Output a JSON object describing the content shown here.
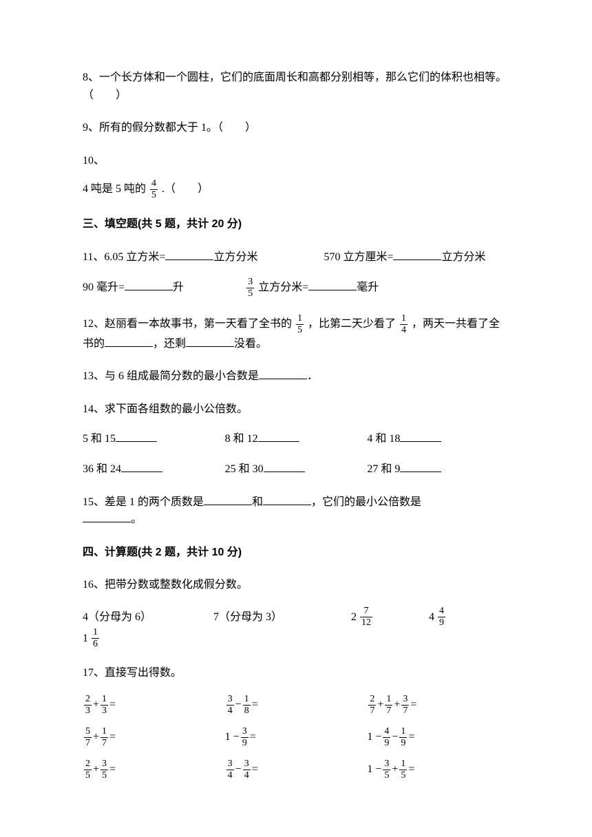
{
  "q8": "8、一个长方体和一个圆柱，它们的底面周长和高都分别相等，那么它们的体积也相等。（　　）",
  "q9": "9、所有的假分数都大于 1。（　　）",
  "q10_label": "10、",
  "q10_prefix": "4 吨是 5 吨的",
  "q10_suffix": ".（　　）",
  "q10_frac": {
    "num": "4",
    "den": "5"
  },
  "section3": "三、填空题(共 5 题，共计 20 分)",
  "q11_a": "11、6.05 立方米=",
  "q11_a_unit": "立方分米",
  "q11_b": "570 立方厘米=",
  "q11_b_unit": "立方分米",
  "q11_c": "90 毫升=",
  "q11_c_unit": "升",
  "q11_d_unit_pre": "立方分米=",
  "q11_d_unit_post": "毫升",
  "q11_d_frac": {
    "num": "3",
    "den": "5"
  },
  "q12_a": "12、赵丽看一本故事书，第一天看了全书的",
  "q12_b": "，比第二天少看了",
  "q12_c": "，两天一共看了全书的",
  "q12_d": "，还剩",
  "q12_e": "没看。",
  "q12_frac1": {
    "num": "1",
    "den": "5"
  },
  "q12_frac2": {
    "num": "1",
    "den": "4"
  },
  "q13_a": "13、与 6 组成最简分数的最小合数是",
  "q13_b": "．",
  "q14": "14、求下面各组数的最小公倍数。",
  "q14_items1": [
    "5 和 15",
    "8 和 12",
    "4 和 18"
  ],
  "q14_items2": [
    "36 和 24",
    "25 和 30",
    "27 和 9"
  ],
  "q15_a": "15、差是 1 的两个质数是",
  "q15_b": "和",
  "q15_c": "，它们的最小公倍数是",
  "q15_d": "。",
  "section4": "四、计算题(共 2 题，共计 10 分)",
  "q16": "16、把带分数或整数化成假分数。",
  "q16_items": {
    "a": "4（分母为 6）",
    "b": "7（分母为 3）",
    "c_whole": "2",
    "c_frac": {
      "num": "7",
      "den": "12"
    },
    "d_whole": "4",
    "d_frac": {
      "num": "4",
      "den": "9"
    },
    "e_whole": "1",
    "e_frac": {
      "num": "1",
      "den": "6"
    }
  },
  "q17": "17、直接写出得数。",
  "q17_rows": [
    [
      {
        "type": "add",
        "a": {
          "n": "2",
          "d": "3"
        },
        "b": {
          "n": "1",
          "d": "3"
        }
      },
      {
        "type": "sub",
        "a": {
          "n": "3",
          "d": "4"
        },
        "b": {
          "n": "1",
          "d": "8"
        }
      },
      {
        "type": "add3",
        "a": {
          "n": "2",
          "d": "7"
        },
        "b": {
          "n": "1",
          "d": "7"
        },
        "c": {
          "n": "3",
          "d": "7"
        }
      }
    ],
    [
      {
        "type": "add",
        "a": {
          "n": "5",
          "d": "7"
        },
        "b": {
          "n": "1",
          "d": "7"
        }
      },
      {
        "type": "onesub",
        "b": {
          "n": "3",
          "d": "9"
        }
      },
      {
        "type": "onesub2",
        "b": {
          "n": "4",
          "d": "9"
        },
        "c": {
          "n": "1",
          "d": "9"
        }
      }
    ],
    [
      {
        "type": "add",
        "a": {
          "n": "2",
          "d": "5"
        },
        "b": {
          "n": "3",
          "d": "5"
        }
      },
      {
        "type": "sub",
        "a": {
          "n": "3",
          "d": "4"
        },
        "b": {
          "n": "3",
          "d": "4"
        }
      },
      {
        "type": "onesubadd",
        "b": {
          "n": "3",
          "d": "5"
        },
        "c": {
          "n": "1",
          "d": "5"
        }
      }
    ]
  ]
}
